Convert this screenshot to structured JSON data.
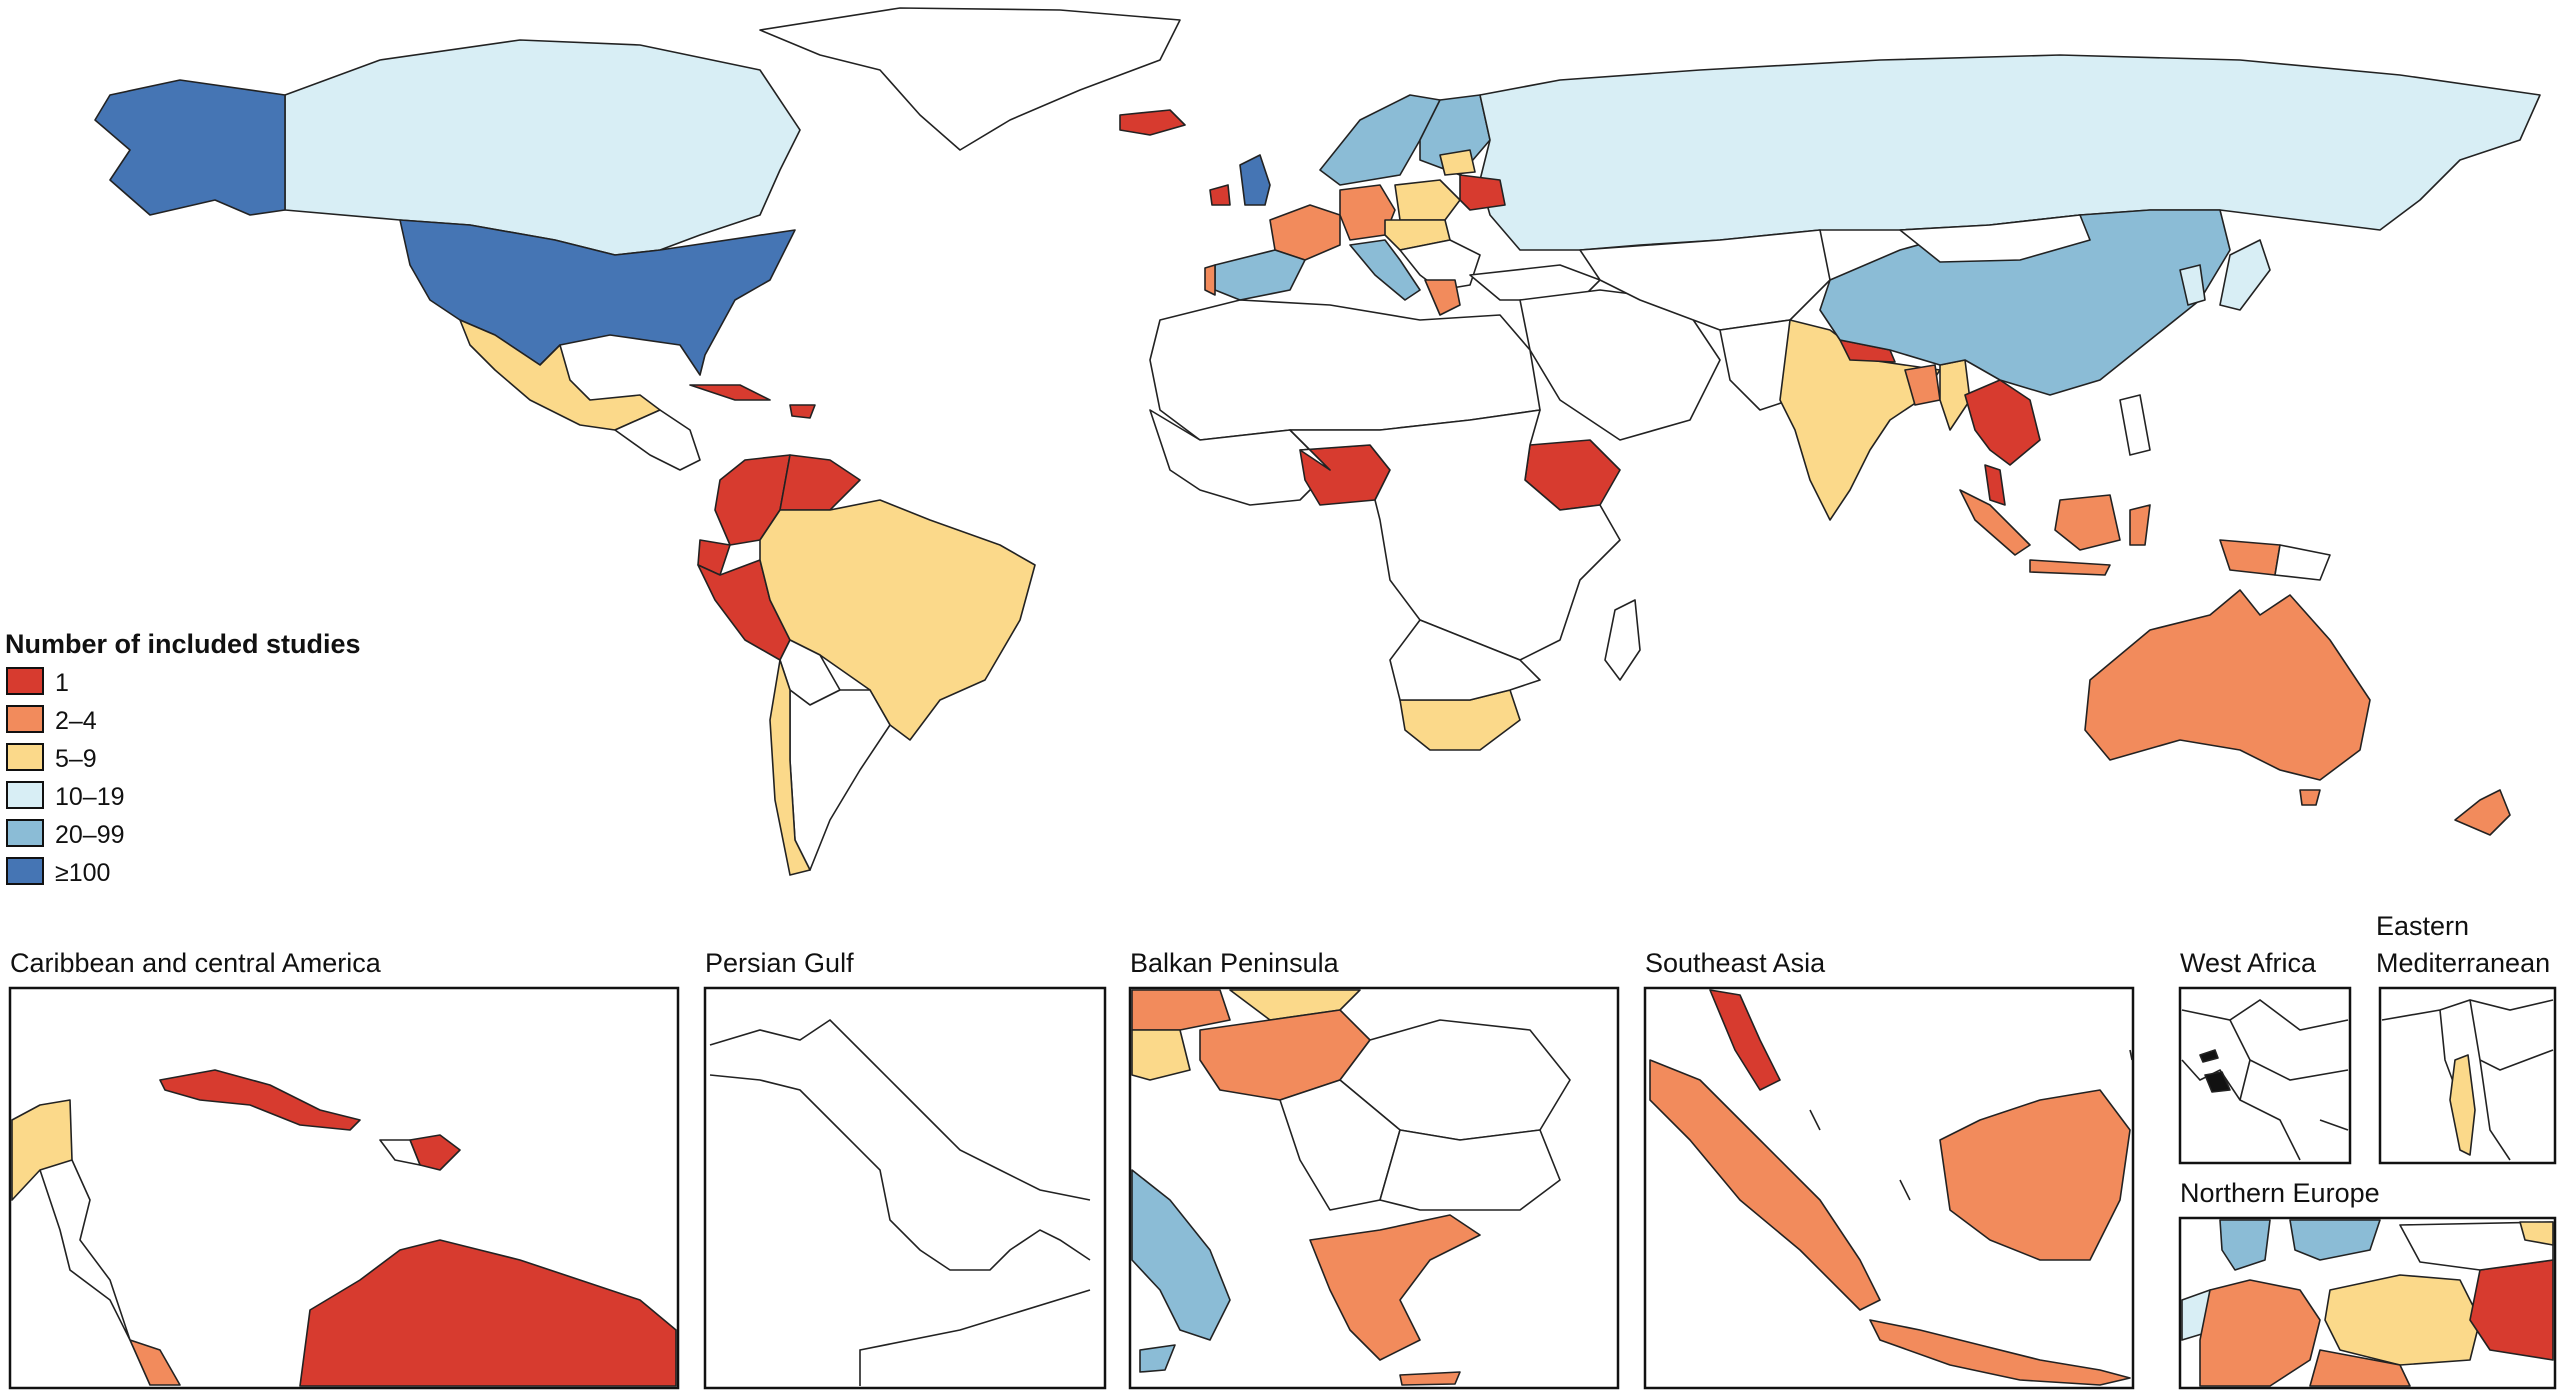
{
  "legend": {
    "title": "Number of included studies",
    "items": [
      {
        "label": "1",
        "color": "#d73b2f"
      },
      {
        "label": "2–4",
        "color": "#f28b5c"
      },
      {
        "label": "5–9",
        "color": "#fbd98a"
      },
      {
        "label": "10–19",
        "color": "#d8eef5"
      },
      {
        "label": "20–99",
        "color": "#8bbcd6"
      },
      {
        "label": "≥100",
        "color": "#4575b4"
      }
    ]
  },
  "insets": [
    {
      "title": "Caribbean and central America"
    },
    {
      "title": "Persian Gulf"
    },
    {
      "title": "Balkan Peninsula"
    },
    {
      "title": "Southeast Asia"
    },
    {
      "title": "West Africa"
    },
    {
      "title_line1": "Eastern",
      "title_line2": "Mediterranean"
    },
    {
      "title": "Northern Europe"
    }
  ],
  "colors": {
    "none": "#ffffff",
    "c1": "#d73b2f",
    "c2_4": "#f28b5c",
    "c5_9": "#fbd98a",
    "c10_19": "#d8eef5",
    "c20_99": "#8bbcd6",
    "c100": "#4575b4"
  }
}
